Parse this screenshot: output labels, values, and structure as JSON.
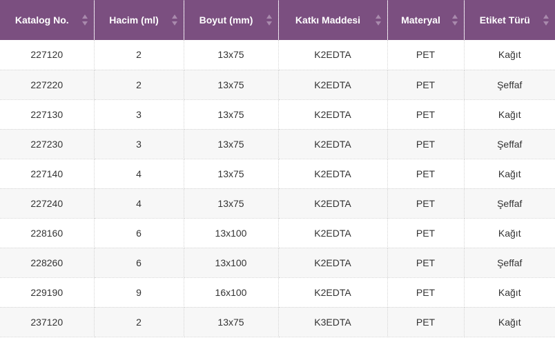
{
  "columns": [
    {
      "label": "Katalog No."
    },
    {
      "label": "Hacim (ml)"
    },
    {
      "label": "Boyut (mm)"
    },
    {
      "label": "Katkı Maddesi"
    },
    {
      "label": "Materyal"
    },
    {
      "label": "Etiket Türü"
    }
  ],
  "rows": [
    [
      "227120",
      "2",
      "13x75",
      "K2EDTA",
      "PET",
      "Kağıt"
    ],
    [
      "227220",
      "2",
      "13x75",
      "K2EDTA",
      "PET",
      "Şeffaf"
    ],
    [
      "227130",
      "3",
      "13x75",
      "K2EDTA",
      "PET",
      "Kağıt"
    ],
    [
      "227230",
      "3",
      "13x75",
      "K2EDTA",
      "PET",
      "Şeffaf"
    ],
    [
      "227140",
      "4",
      "13x75",
      "K2EDTA",
      "PET",
      "Kağıt"
    ],
    [
      "227240",
      "4",
      "13x75",
      "K2EDTA",
      "PET",
      "Şeffaf"
    ],
    [
      "228160",
      "6",
      "13x100",
      "K2EDTA",
      "PET",
      "Kağıt"
    ],
    [
      "228260",
      "6",
      "13x100",
      "K2EDTA",
      "PET",
      "Şeffaf"
    ],
    [
      "229190",
      "9",
      "16x100",
      "K2EDTA",
      "PET",
      "Kağıt"
    ],
    [
      "237120",
      "2",
      "13x75",
      "K3EDTA",
      "PET",
      "Kağıt"
    ]
  ],
  "colors": {
    "header_bg": "#7b4f80",
    "header_text": "#ffffff",
    "row_alt_bg": "#f7f7f7",
    "cell_text": "#333333"
  },
  "icons": {
    "sort": "sort-icon"
  }
}
